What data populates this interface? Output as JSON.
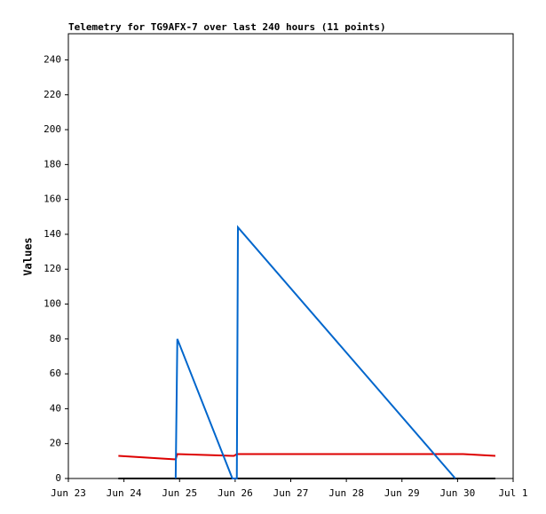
{
  "chart_data": {
    "type": "line",
    "title": "Telemetry for TG9AFX-7 over last 240 hours (11 points)",
    "y_label": "Values",
    "x": [
      23.9,
      24.9,
      24.93,
      24.96,
      25.95,
      25.98,
      26.03,
      26.05,
      29.96,
      30.1,
      30.68
    ],
    "series": [
      {
        "color": "#000000",
        "values": [
          0,
          0,
          0,
          0,
          0,
          0,
          0,
          0,
          0,
          0,
          0
        ]
      },
      {
        "color": "#dd0000",
        "values": [
          13,
          11,
          11,
          14,
          13,
          13,
          14,
          14,
          14,
          14,
          13
        ]
      },
      {
        "color": "#0066cc",
        "values": [
          null,
          null,
          0,
          80,
          0,
          0,
          0,
          144,
          0,
          null,
          null
        ]
      }
    ],
    "xlim": [
      23,
      31
    ],
    "xticks": [
      {
        "value": 23,
        "label": "Jun 23"
      },
      {
        "value": 24,
        "label": "Jun 24"
      },
      {
        "value": 25,
        "label": "Jun 25"
      },
      {
        "value": 26,
        "label": "Jun 26"
      },
      {
        "value": 27,
        "label": "Jun 27"
      },
      {
        "value": 28,
        "label": "Jun 28"
      },
      {
        "value": 29,
        "label": "Jun 29"
      },
      {
        "value": 30,
        "label": "Jun 30"
      },
      {
        "value": 31,
        "label": "Jul 1"
      }
    ],
    "ylim": [
      0,
      255
    ],
    "yticks": [
      0,
      20,
      40,
      60,
      80,
      100,
      120,
      140,
      160,
      180,
      200,
      220,
      240
    ]
  }
}
